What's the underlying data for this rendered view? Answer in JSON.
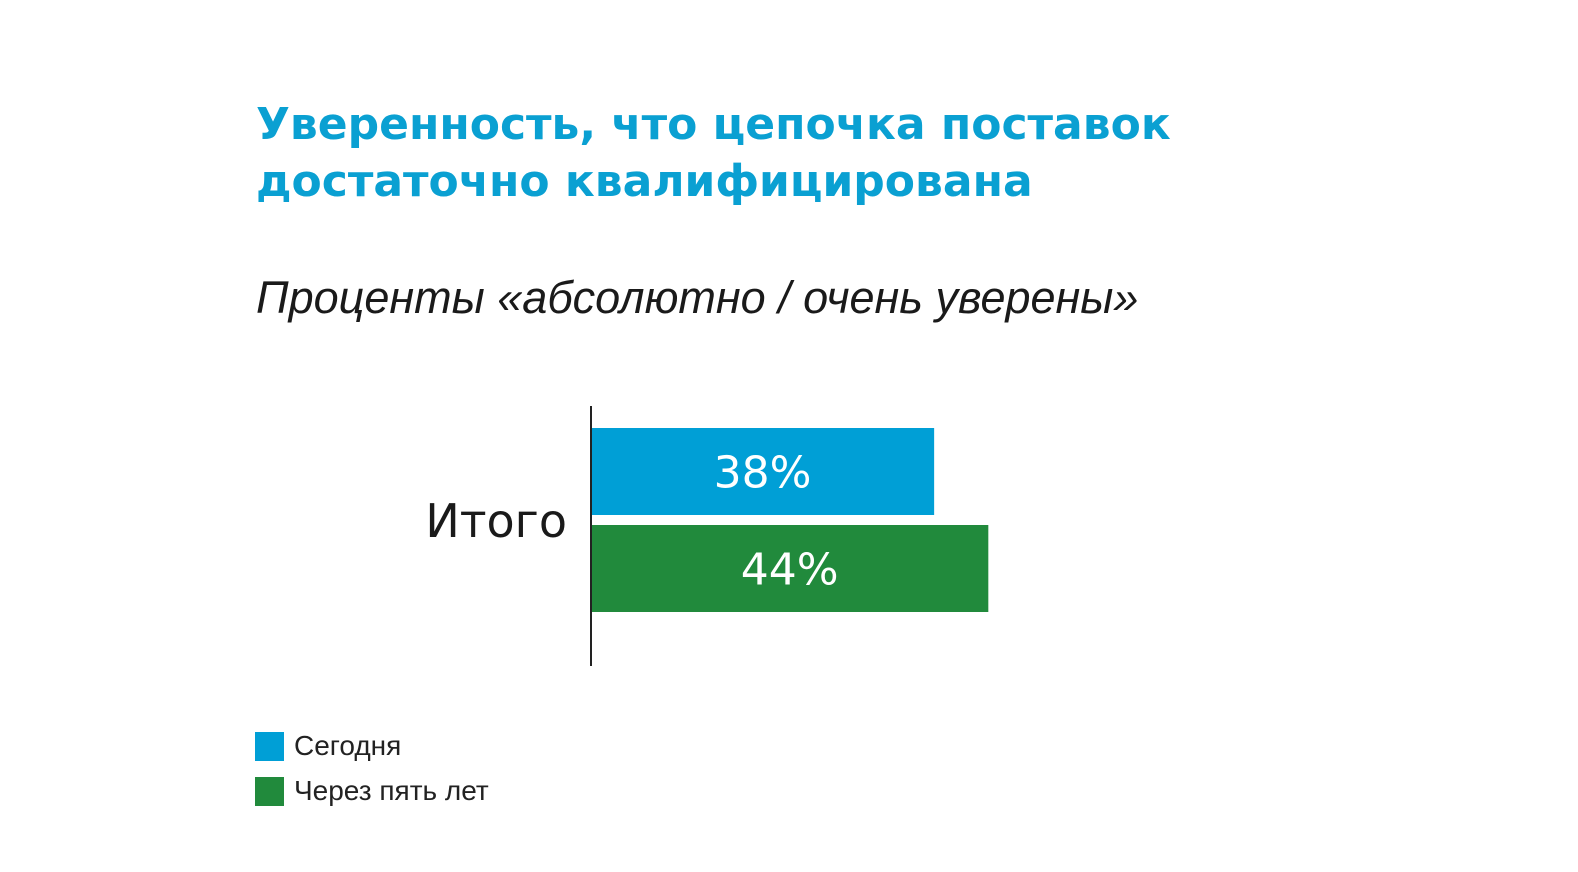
{
  "chart_data": {
    "type": "bar",
    "orientation": "horizontal",
    "title_lines": [
      "Уверенность, что цепочка поставок",
      "достаточно квалифицирована"
    ],
    "subtitle": "Проценты «абсолютно / очень уверены»",
    "categories": [
      "Итого"
    ],
    "series": [
      {
        "name": "Сегодня",
        "values": [
          38
        ],
        "labels": [
          "38%"
        ],
        "color": "#009fd6"
      },
      {
        "name": "Через пять лет",
        "values": [
          44
        ],
        "labels": [
          "44%"
        ],
        "color": "#218a3c"
      }
    ],
    "xlim": [
      0,
      100
    ],
    "grid": false,
    "legend_position": "bottom-left"
  }
}
